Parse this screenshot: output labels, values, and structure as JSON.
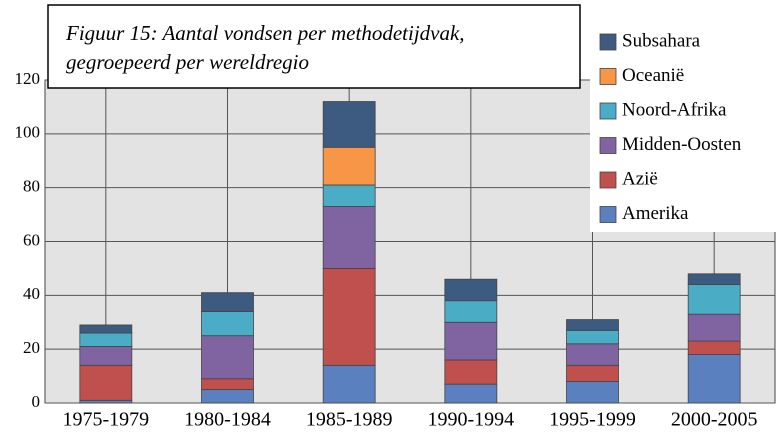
{
  "chart_data": {
    "type": "stacked_bar",
    "title": [
      "Figuur 15: Aantal vondsen per methodetijdvak,",
      "gegroepeerd per wereldregio"
    ],
    "categories": [
      "1975-1979",
      "1980-1984",
      "1985-1989",
      "1990-1994",
      "1995-1999",
      "2000-2005"
    ],
    "series": [
      {
        "name": "Amerika",
        "color": "#5b80bf",
        "values": [
          1,
          5,
          14,
          7,
          8,
          18
        ]
      },
      {
        "name": "Azië",
        "color": "#c0504d",
        "values": [
          13,
          4,
          36,
          9,
          6,
          5
        ]
      },
      {
        "name": "Midden-Oosten",
        "color": "#8064a2",
        "values": [
          7,
          16,
          23,
          14,
          8,
          10
        ]
      },
      {
        "name": "Noord-Afrika",
        "color": "#4bacc6",
        "values": [
          5,
          9,
          8,
          8,
          5,
          11
        ]
      },
      {
        "name": "Oceanië",
        "color": "#f79646",
        "values": [
          0,
          0,
          14,
          0,
          0,
          0
        ]
      },
      {
        "name": "Subsahara",
        "color": "#3d5a80",
        "values": [
          3,
          7,
          17,
          8,
          4,
          4
        ]
      }
    ],
    "ylim": [
      0,
      120
    ],
    "yticks": [
      0,
      20,
      40,
      60,
      80,
      100,
      120
    ],
    "grid": true,
    "legend": "right"
  }
}
